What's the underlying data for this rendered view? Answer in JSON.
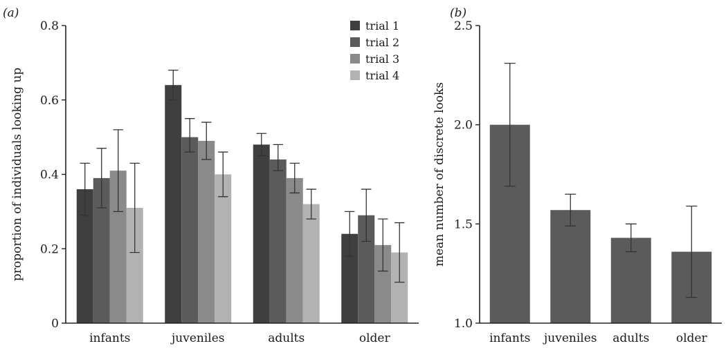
{
  "chart_data": [
    {
      "panel": "(a)",
      "type": "bar",
      "title": "",
      "xlabel": "",
      "ylabel": "proportion of individuals looking up",
      "ylim": [
        0,
        0.8
      ],
      "yticks": [
        "0",
        "0.2",
        "0.4",
        "0.6",
        "0.8"
      ],
      "categories": [
        "infants",
        "juveniles",
        "adults",
        "older"
      ],
      "legend_position": "top-right",
      "series": [
        {
          "name": "trial 1",
          "color": "#3f3f3f",
          "values": [
            0.36,
            0.64,
            0.48,
            0.24
          ],
          "err_low": [
            0.29,
            0.6,
            0.45,
            0.18
          ],
          "err_high": [
            0.43,
            0.68,
            0.51,
            0.3
          ]
        },
        {
          "name": "trial 2",
          "color": "#5b5b5b",
          "values": [
            0.39,
            0.5,
            0.44,
            0.29
          ],
          "err_low": [
            0.31,
            0.46,
            0.41,
            0.22
          ],
          "err_high": [
            0.47,
            0.55,
            0.48,
            0.36
          ]
        },
        {
          "name": "trial 3",
          "color": "#8a8a8a",
          "values": [
            0.41,
            0.49,
            0.39,
            0.21
          ],
          "err_low": [
            0.3,
            0.44,
            0.35,
            0.14
          ],
          "err_high": [
            0.52,
            0.54,
            0.43,
            0.28
          ]
        },
        {
          "name": "trial 4",
          "color": "#b2b2b2",
          "values": [
            0.31,
            0.4,
            0.32,
            0.19
          ],
          "err_low": [
            0.19,
            0.34,
            0.28,
            0.11
          ],
          "err_high": [
            0.43,
            0.46,
            0.36,
            0.27
          ]
        }
      ]
    },
    {
      "panel": "(b)",
      "type": "bar",
      "title": "",
      "xlabel": "",
      "ylabel": "mean number of discrete looks",
      "ylim": [
        1.0,
        2.5
      ],
      "yticks": [
        "1.0",
        "1.5",
        "2.0",
        "2.5"
      ],
      "categories": [
        "infants",
        "juveniles",
        "adults",
        "older"
      ],
      "series": [
        {
          "color": "#5b5b5b",
          "values": [
            2.0,
            1.57,
            1.43,
            1.36
          ],
          "err_low": [
            1.69,
            1.49,
            1.36,
            1.13
          ],
          "err_high": [
            2.31,
            1.65,
            1.5,
            1.59
          ]
        }
      ]
    }
  ]
}
